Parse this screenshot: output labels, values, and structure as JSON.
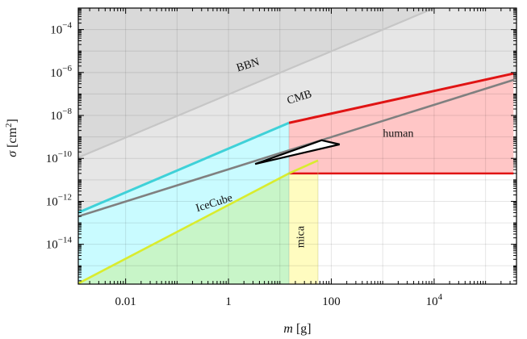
{
  "chart_data": {
    "type": "area",
    "xlabel_var": "m",
    "xlabel_unit": " [g]",
    "ylabel_var": "σ",
    "ylabel_unit_pre": " [cm",
    "ylabel_unit_sup": "2",
    "ylabel_unit_post": "]",
    "x_scale": "log",
    "y_scale": "log",
    "xlim": [
      0.0012,
      400000
    ],
    "ylim": [
      1.4e-16,
      0.001
    ],
    "grid": true,
    "x_ticks": [
      {
        "value": 0.01,
        "label": "0.01"
      },
      {
        "value": 1,
        "label": "1"
      },
      {
        "value": 100,
        "label": "100"
      },
      {
        "value": 10000,
        "base": "10",
        "exp": "4"
      }
    ],
    "y_ticks": [
      {
        "value": 0.0001,
        "base": "10",
        "exp": "−4"
      },
      {
        "value": 1e-06,
        "base": "10",
        "exp": "−6"
      },
      {
        "value": 1e-08,
        "base": "10",
        "exp": "−8"
      },
      {
        "value": 1e-10,
        "base": "10",
        "exp": "−10"
      },
      {
        "value": 1e-12,
        "base": "10",
        "exp": "−12"
      },
      {
        "value": 1e-14,
        "base": "10",
        "exp": "−14"
      }
    ],
    "series": [
      {
        "name": "BBN",
        "color": "#c6c6c6",
        "x": [
          0.0012,
          10000
        ],
        "y": [
          1.1e-10,
          0.001
        ]
      },
      {
        "name": "CMB",
        "color": "#808080",
        "x": [
          0.0012,
          350000
        ],
        "y": [
          2e-13,
          4.5e-07
        ]
      },
      {
        "name": "IceCube",
        "color": "#3fd1d8",
        "x": [
          0.0012,
          15
        ],
        "y": [
          3e-13,
          4.5e-09
        ]
      },
      {
        "name": "mica",
        "color": "#d9ec2e",
        "x": [
          0.0012,
          15,
          55
        ],
        "y": [
          1.5e-16,
          2e-11,
          8e-11
        ]
      },
      {
        "name": "human",
        "color": "#e01414",
        "x": [
          15,
          350000
        ],
        "y": [
          4.5e-09,
          9e-07
        ]
      }
    ],
    "regions": [
      {
        "name": "BBN",
        "fill": "#d9d9d9"
      },
      {
        "name": "CMB",
        "fill": "#e6e6e6"
      },
      {
        "name": "IceCube",
        "fill": "#c9fbff"
      },
      {
        "name": "mica",
        "fill": "#fffcc0"
      },
      {
        "name": "mica-overlap",
        "fill": "#c8f5c8"
      },
      {
        "name": "human",
        "fill": "#ffc6c6"
      }
    ],
    "human_floor": 2e-11,
    "mica_right_x": 55,
    "triangle": {
      "x": [
        3.3,
        65,
        145
      ],
      "y": [
        5.5e-11,
        7e-10,
        4.5e-10
      ]
    },
    "labels": {
      "bbn": "BBN",
      "cmb": "CMB",
      "icecube": "IceCube",
      "mica": "mica",
      "human": "human"
    }
  }
}
